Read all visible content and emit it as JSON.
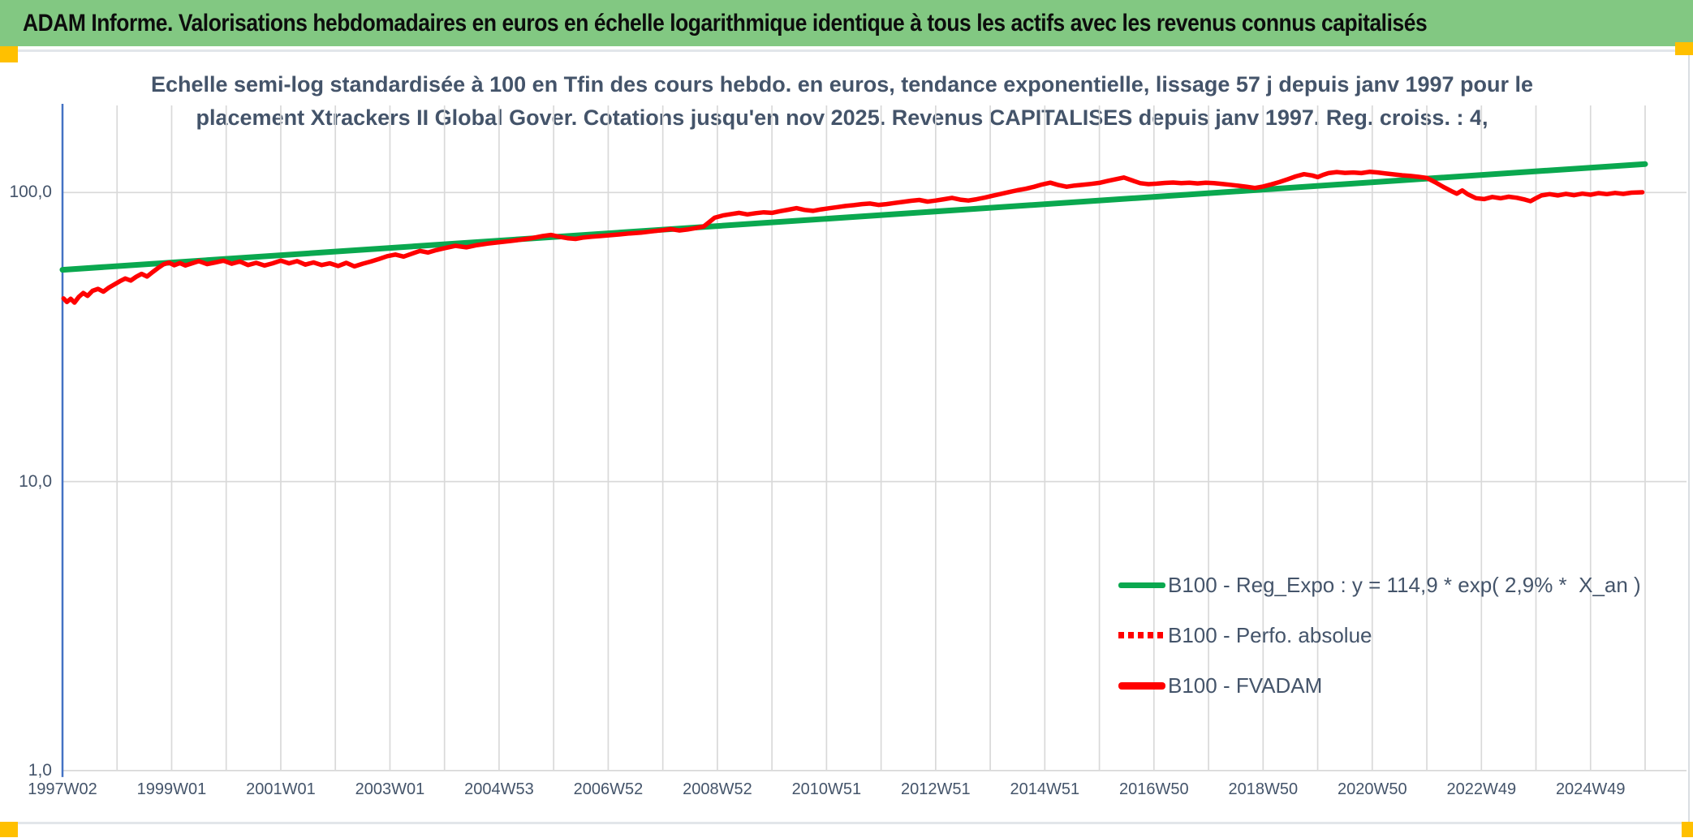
{
  "banner": {
    "title": "ADAM Informe. Valorisations hebdomadaires en euros en échelle logarithmique identique à tous les actifs avec les revenus connus capitalisés"
  },
  "chart": {
    "title_line1": "Echelle semi-log standardisée à 100 en Tfin des cours hebdo. en euros, tendance exponentielle, lissage 57 j depuis janv 1997 pour le",
    "title_line2": "placement Xtrackers II Global Gover. Cotations jusqu'en nov 2025. Revenus CAPITALISES depuis janv 1997. Reg. croiss. : 4,"
  },
  "colors": {
    "banner_green": "#82c882",
    "accent_yellow": "#ffc000",
    "reg_expo_green": "#0aa84f",
    "series_red": "#ff0000",
    "axis_blue": "#4472c4",
    "gridline_gray": "#d9d9d9",
    "text_slate": "#44546a"
  },
  "chart_data": {
    "type": "line",
    "title": "Echelle semi-log standardisée à 100 en Tfin des cours hebdo. en euros, tendance exponentielle, lissage 57 j depuis janv 1997 pour le placement Xtrackers II Global Gover. Cotations jusqu'en nov 2025. Revenus CAPITALISES depuis janv 1997. Reg. croiss. : 4,",
    "y_scale": "log",
    "ylim": [
      1,
      200
    ],
    "grid": {
      "vertical_every_years": 1,
      "horizontal_at": [
        100,
        10,
        1
      ]
    },
    "legend_position": "inside-lower-right",
    "x_range_years": [
      1997,
      2026
    ],
    "y_ticks": [
      {
        "label": "100,0",
        "value": 100
      },
      {
        "label": "10,0",
        "value": 10
      },
      {
        "label": "1,0",
        "value": 1
      }
    ],
    "x_tick_labels": [
      "1997W02",
      "1999W01",
      "2001W01",
      "2003W01",
      "2004W53",
      "2006W52",
      "2008W52",
      "2010W51",
      "2012W51",
      "2014W51",
      "2016W50",
      "2018W50",
      "2020W50",
      "2022W49",
      "2024W49"
    ],
    "x_tick_positions_years": [
      1997,
      1999,
      2001,
      2003,
      2005,
      2007,
      2009,
      2011,
      2013,
      2015,
      2017,
      2019,
      2021,
      2023,
      2025
    ],
    "series": [
      {
        "name": "B100 - Reg_Expo : y = 114,9 * exp( 2,9% *  X_an )",
        "color": "#0aa84f",
        "style": "solid",
        "width": 7,
        "points": [
          [
            1997.0,
            54.0
          ],
          [
            2026.0,
            125.5
          ]
        ]
      },
      {
        "name": "B100 - Perfo. absolue",
        "color": "#ff0000",
        "style": "dotted",
        "width": 5,
        "coincident_with": "B100 - FVADAM",
        "points": []
      },
      {
        "name": "B100 - FVADAM",
        "color": "#ff0000",
        "style": "solid",
        "width": 5.5,
        "points": [
          [
            1997.02,
            43.0
          ],
          [
            1997.08,
            41.8
          ],
          [
            1997.15,
            42.9
          ],
          [
            1997.22,
            41.6
          ],
          [
            1997.3,
            43.6
          ],
          [
            1997.38,
            44.9
          ],
          [
            1997.46,
            43.9
          ],
          [
            1997.55,
            45.7
          ],
          [
            1997.65,
            46.4
          ],
          [
            1997.75,
            45.4
          ],
          [
            1997.85,
            46.9
          ],
          [
            1997.95,
            48.1
          ],
          [
            1998.05,
            49.3
          ],
          [
            1998.15,
            50.4
          ],
          [
            1998.25,
            49.6
          ],
          [
            1998.35,
            51.1
          ],
          [
            1998.45,
            52.3
          ],
          [
            1998.55,
            51.2
          ],
          [
            1998.65,
            53.0
          ],
          [
            1998.75,
            54.8
          ],
          [
            1998.85,
            56.4
          ],
          [
            1998.95,
            57.2
          ],
          [
            1999.05,
            56.0
          ],
          [
            1999.15,
            57.0
          ],
          [
            1999.25,
            55.9
          ],
          [
            1999.35,
            56.7
          ],
          [
            1999.5,
            57.9
          ],
          [
            1999.65,
            56.5
          ],
          [
            1999.8,
            57.3
          ],
          [
            1999.95,
            58.1
          ],
          [
            2000.1,
            56.7
          ],
          [
            2000.25,
            57.7
          ],
          [
            2000.4,
            56.1
          ],
          [
            2000.55,
            57.1
          ],
          [
            2000.7,
            55.9
          ],
          [
            2000.85,
            56.9
          ],
          [
            2001.0,
            58.1
          ],
          [
            2001.15,
            56.9
          ],
          [
            2001.3,
            57.9
          ],
          [
            2001.45,
            56.3
          ],
          [
            2001.6,
            57.3
          ],
          [
            2001.75,
            56.1
          ],
          [
            2001.9,
            56.9
          ],
          [
            2002.05,
            55.7
          ],
          [
            2002.2,
            57.1
          ],
          [
            2002.35,
            55.5
          ],
          [
            2002.5,
            56.7
          ],
          [
            2002.65,
            57.7
          ],
          [
            2002.8,
            58.9
          ],
          [
            2002.95,
            60.2
          ],
          [
            2003.1,
            61.0
          ],
          [
            2003.25,
            60.0
          ],
          [
            2003.4,
            61.4
          ],
          [
            2003.55,
            62.8
          ],
          [
            2003.7,
            62.0
          ],
          [
            2003.85,
            63.2
          ],
          [
            2004.0,
            64.2
          ],
          [
            2004.2,
            65.4
          ],
          [
            2004.4,
            64.6
          ],
          [
            2004.6,
            65.8
          ],
          [
            2004.8,
            66.6
          ],
          [
            2005.0,
            67.3
          ],
          [
            2005.2,
            67.9
          ],
          [
            2005.4,
            68.7
          ],
          [
            2005.6,
            69.5
          ],
          [
            2005.8,
            70.7
          ],
          [
            2005.95,
            71.3
          ],
          [
            2006.1,
            70.3
          ],
          [
            2006.25,
            69.5
          ],
          [
            2006.4,
            69.1
          ],
          [
            2006.55,
            69.9
          ],
          [
            2006.7,
            70.3
          ],
          [
            2006.85,
            70.7
          ],
          [
            2007.0,
            71.1
          ],
          [
            2007.2,
            71.6
          ],
          [
            2007.4,
            72.2
          ],
          [
            2007.6,
            72.6
          ],
          [
            2007.8,
            73.4
          ],
          [
            2008.0,
            74.1
          ],
          [
            2008.15,
            74.7
          ],
          [
            2008.3,
            73.9
          ],
          [
            2008.45,
            74.5
          ],
          [
            2008.6,
            75.3
          ],
          [
            2008.75,
            76.3
          ],
          [
            2008.85,
            79.0
          ],
          [
            2008.95,
            81.8
          ],
          [
            2009.1,
            83.3
          ],
          [
            2009.25,
            84.2
          ],
          [
            2009.4,
            85.0
          ],
          [
            2009.55,
            84.0
          ],
          [
            2009.7,
            84.8
          ],
          [
            2009.85,
            85.4
          ],
          [
            2010.0,
            85.0
          ],
          [
            2010.15,
            86.2
          ],
          [
            2010.3,
            87.2
          ],
          [
            2010.45,
            88.3
          ],
          [
            2010.6,
            87.0
          ],
          [
            2010.75,
            86.4
          ],
          [
            2010.9,
            87.4
          ],
          [
            2011.05,
            88.2
          ],
          [
            2011.2,
            89.0
          ],
          [
            2011.35,
            89.8
          ],
          [
            2011.5,
            90.4
          ],
          [
            2011.65,
            91.2
          ],
          [
            2011.8,
            91.6
          ],
          [
            2011.95,
            90.6
          ],
          [
            2012.1,
            91.2
          ],
          [
            2012.25,
            92.0
          ],
          [
            2012.4,
            92.8
          ],
          [
            2012.55,
            93.6
          ],
          [
            2012.7,
            94.2
          ],
          [
            2012.85,
            93.0
          ],
          [
            2013.0,
            93.8
          ],
          [
            2013.15,
            94.8
          ],
          [
            2013.3,
            95.8
          ],
          [
            2013.45,
            94.5
          ],
          [
            2013.6,
            93.8
          ],
          [
            2013.75,
            94.8
          ],
          [
            2013.9,
            96.0
          ],
          [
            2014.05,
            97.5
          ],
          [
            2014.2,
            99.0
          ],
          [
            2014.35,
            100.4
          ],
          [
            2014.5,
            101.8
          ],
          [
            2014.65,
            103.0
          ],
          [
            2014.8,
            104.6
          ],
          [
            2014.95,
            106.6
          ],
          [
            2015.1,
            108.1
          ],
          [
            2015.25,
            106.1
          ],
          [
            2015.4,
            104.7
          ],
          [
            2015.55,
            105.7
          ],
          [
            2015.7,
            106.3
          ],
          [
            2015.85,
            107.1
          ],
          [
            2016.0,
            108.0
          ],
          [
            2016.15,
            109.6
          ],
          [
            2016.3,
            111.2
          ],
          [
            2016.45,
            112.7
          ],
          [
            2016.6,
            110.1
          ],
          [
            2016.75,
            107.7
          ],
          [
            2016.9,
            106.9
          ],
          [
            2017.05,
            107.3
          ],
          [
            2017.2,
            107.9
          ],
          [
            2017.35,
            108.3
          ],
          [
            2017.5,
            107.7
          ],
          [
            2017.65,
            108.1
          ],
          [
            2017.8,
            107.5
          ],
          [
            2017.95,
            108.1
          ],
          [
            2018.1,
            107.7
          ],
          [
            2018.25,
            107.1
          ],
          [
            2018.4,
            106.3
          ],
          [
            2018.55,
            105.5
          ],
          [
            2018.7,
            104.7
          ],
          [
            2018.85,
            103.7
          ],
          [
            2019.0,
            104.9
          ],
          [
            2019.15,
            106.7
          ],
          [
            2019.3,
            108.7
          ],
          [
            2019.45,
            111.1
          ],
          [
            2019.6,
            113.7
          ],
          [
            2019.75,
            115.7
          ],
          [
            2019.9,
            114.5
          ],
          [
            2020.0,
            113.1
          ],
          [
            2020.1,
            115.1
          ],
          [
            2020.2,
            116.7
          ],
          [
            2020.35,
            117.7
          ],
          [
            2020.5,
            116.9
          ],
          [
            2020.65,
            117.3
          ],
          [
            2020.8,
            116.7
          ],
          [
            2020.95,
            117.9
          ],
          [
            2021.1,
            117.3
          ],
          [
            2021.25,
            116.3
          ],
          [
            2021.4,
            115.5
          ],
          [
            2021.55,
            114.7
          ],
          [
            2021.7,
            114.1
          ],
          [
            2021.85,
            113.3
          ],
          [
            2022.0,
            112.3
          ],
          [
            2022.15,
            108.6
          ],
          [
            2022.3,
            104.6
          ],
          [
            2022.45,
            101.1
          ],
          [
            2022.55,
            99.1
          ],
          [
            2022.65,
            101.6
          ],
          [
            2022.75,
            98.6
          ],
          [
            2022.9,
            95.6
          ],
          [
            2023.05,
            94.9
          ],
          [
            2023.2,
            96.5
          ],
          [
            2023.35,
            95.5
          ],
          [
            2023.5,
            96.7
          ],
          [
            2023.65,
            95.9
          ],
          [
            2023.8,
            94.5
          ],
          [
            2023.9,
            93.3
          ],
          [
            2024.0,
            95.6
          ],
          [
            2024.1,
            97.7
          ],
          [
            2024.25,
            98.7
          ],
          [
            2024.4,
            97.7
          ],
          [
            2024.55,
            98.9
          ],
          [
            2024.7,
            97.9
          ],
          [
            2024.85,
            99.1
          ],
          [
            2025.0,
            98.3
          ],
          [
            2025.15,
            99.5
          ],
          [
            2025.3,
            98.7
          ],
          [
            2025.45,
            99.7
          ],
          [
            2025.6,
            98.9
          ],
          [
            2025.75,
            99.9
          ],
          [
            2025.95,
            100.2
          ]
        ]
      }
    ]
  }
}
